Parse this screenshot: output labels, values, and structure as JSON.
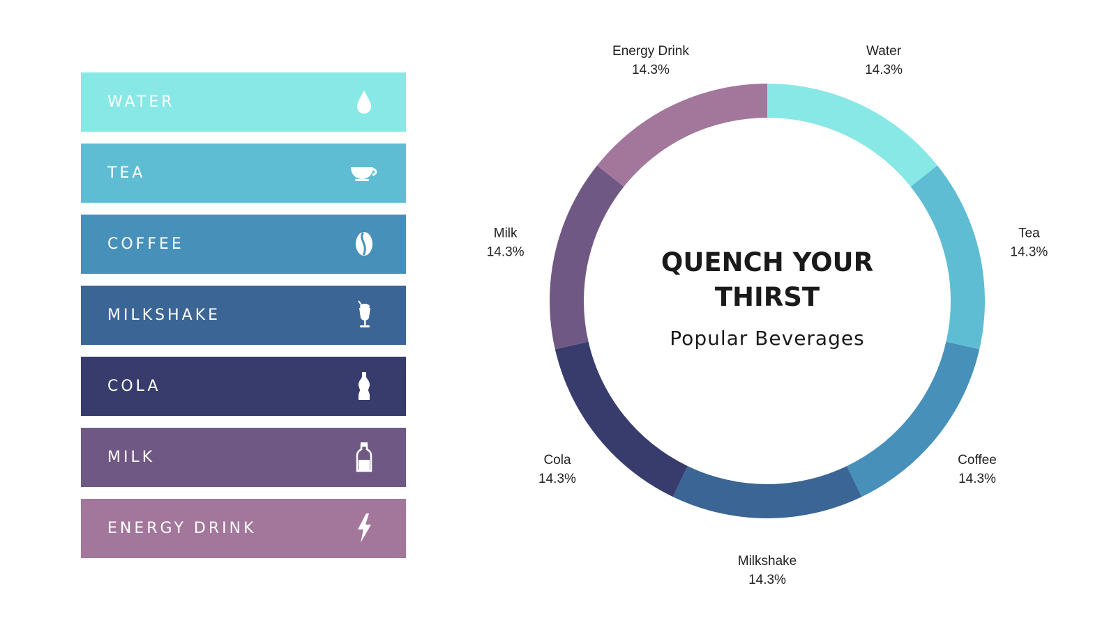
{
  "chart_data": {
    "type": "pie",
    "donut": true,
    "title": "QUENCH YOUR THIRST",
    "subtitle": "Popular Beverages",
    "slices": [
      {
        "label": "Water",
        "value": 14.3,
        "value_label": "14.3%",
        "color": "#87e8e6"
      },
      {
        "label": "Tea",
        "value": 14.3,
        "value_label": "14.3%",
        "color": "#5fbdd3"
      },
      {
        "label": "Coffee",
        "value": 14.3,
        "value_label": "14.3%",
        "color": "#4690b9"
      },
      {
        "label": "Milkshake",
        "value": 14.3,
        "value_label": "14.3%",
        "color": "#3b6594"
      },
      {
        "label": "Cola",
        "value": 14.3,
        "value_label": "14.3%",
        "color": "#373c6d"
      },
      {
        "label": "Milk",
        "value": 14.3,
        "value_label": "14.3%",
        "color": "#705885"
      },
      {
        "label": "Energy Drink",
        "value": 14.3,
        "value_label": "14.3%",
        "color": "#a3779c"
      }
    ]
  },
  "legend": {
    "items": [
      {
        "label": "WATER",
        "icon": "water-drop-icon",
        "color": "#87e8e6"
      },
      {
        "label": "TEA",
        "icon": "tea-cup-icon",
        "color": "#5fbdd3"
      },
      {
        "label": "COFFEE",
        "icon": "coffee-bean-icon",
        "color": "#4690b9"
      },
      {
        "label": "MILKSHAKE",
        "icon": "milkshake-icon",
        "color": "#3b6594"
      },
      {
        "label": "COLA",
        "icon": "cola-bottle-icon",
        "color": "#373c6d"
      },
      {
        "label": "MILK",
        "icon": "milk-bottle-icon",
        "color": "#705885"
      },
      {
        "label": "ENERGY DRINK",
        "icon": "lightning-bolt-icon",
        "color": "#a3779c"
      }
    ]
  }
}
